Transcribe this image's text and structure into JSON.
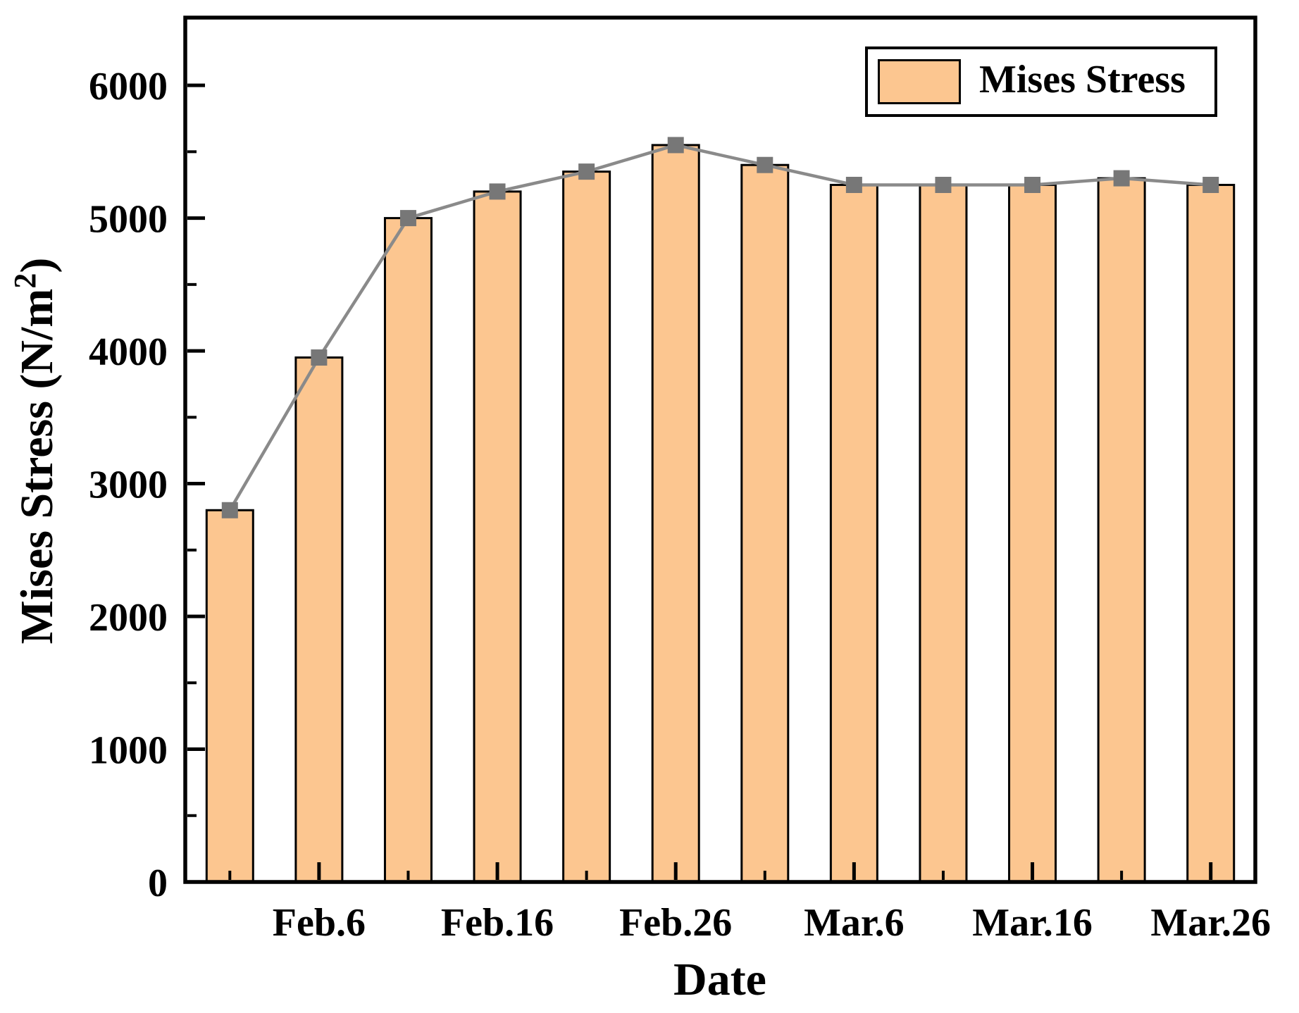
{
  "figure": {
    "background": "#FFFFFF"
  },
  "chart_data": {
    "type": "bar",
    "title": "",
    "xlabel": "Date",
    "ylabel": "Mises Stress (N/m²)",
    "ylabel_parts": {
      "base": "Mises Stress (N/m",
      "sup": "2",
      "close": ")"
    },
    "x_tick_labels": [
      "",
      "Feb.6",
      "",
      "Feb.16",
      "",
      "Feb.26",
      "",
      "Mar.6",
      "",
      "Mar.16",
      "",
      "Mar.26"
    ],
    "series": [
      {
        "name": "Mises Stress",
        "type": "bar",
        "color": "#FCC690",
        "border_color": "#000000",
        "values": [
          2800,
          3950,
          5000,
          5200,
          5350,
          5550,
          5400,
          5250,
          5250,
          5250,
          5300,
          5250
        ]
      },
      {
        "name": "Mises Stress trend line",
        "type": "line",
        "color": "#8A8A8A",
        "marker": "square",
        "marker_color": "#777777",
        "values": [
          2800,
          3950,
          5000,
          5200,
          5350,
          5550,
          5400,
          5250,
          5250,
          5250,
          5300,
          5250
        ]
      }
    ],
    "y_axis": {
      "min": 0,
      "max": 6510,
      "major_tick_step": 1000,
      "minor_tick_step": 500,
      "tick_labels": [
        "0",
        "1000",
        "2000",
        "3000",
        "4000",
        "5000",
        "6000"
      ]
    },
    "legend": {
      "label": "Mises Stress",
      "swatch_color": "#FCC690",
      "position": "top-right"
    },
    "grid": false,
    "axis_color": "#000000"
  }
}
